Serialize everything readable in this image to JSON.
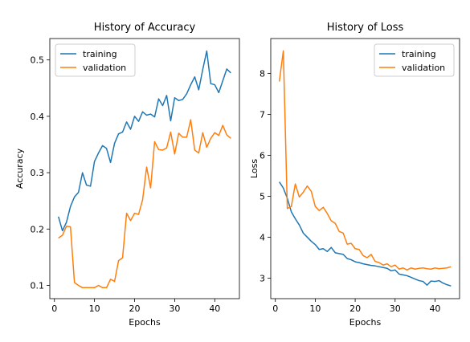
{
  "chart_data": [
    {
      "type": "line",
      "title": "History of Accuracy",
      "xlabel": "Epochs",
      "ylabel": "Accuracy",
      "xlim": [
        -1.15,
        46.15
      ],
      "ylim": [
        0.0765,
        0.538
      ],
      "xticks": [
        0,
        10,
        20,
        30,
        40
      ],
      "yticks": [
        0.1,
        0.2,
        0.3,
        0.4,
        0.5
      ],
      "ytick_labels": [
        "0.1",
        "0.2",
        "0.3",
        "0.4",
        "0.5"
      ],
      "legend": "upper left",
      "series": [
        {
          "name": "training",
          "color": "#1f77b4",
          "x": [
            1,
            2,
            3,
            4,
            5,
            6,
            7,
            8,
            9,
            10,
            11,
            12,
            13,
            14,
            15,
            16,
            17,
            18,
            19,
            20,
            21,
            22,
            23,
            24,
            25,
            26,
            27,
            28,
            29,
            30,
            31,
            32,
            33,
            34,
            35,
            36,
            37,
            38,
            39,
            40,
            41,
            42,
            43,
            44
          ],
          "values": [
            0.222,
            0.197,
            0.212,
            0.24,
            0.257,
            0.265,
            0.3,
            0.278,
            0.276,
            0.32,
            0.335,
            0.348,
            0.343,
            0.318,
            0.352,
            0.369,
            0.372,
            0.39,
            0.377,
            0.4,
            0.391,
            0.408,
            0.402,
            0.404,
            0.399,
            0.431,
            0.419,
            0.437,
            0.392,
            0.433,
            0.428,
            0.43,
            0.44,
            0.456,
            0.47,
            0.447,
            0.483,
            0.516,
            0.458,
            0.456,
            0.442,
            0.463,
            0.484,
            0.477
          ]
        },
        {
          "name": "validation",
          "color": "#ff7f0e",
          "x": [
            1,
            2,
            3,
            4,
            5,
            6,
            7,
            8,
            9,
            10,
            11,
            12,
            13,
            14,
            15,
            16,
            17,
            18,
            19,
            20,
            21,
            22,
            23,
            24,
            25,
            26,
            27,
            28,
            29,
            30,
            31,
            32,
            33,
            34,
            35,
            36,
            37,
            38,
            39,
            40,
            41,
            42,
            43,
            44
          ],
          "values": [
            0.184,
            0.189,
            0.205,
            0.204,
            0.105,
            0.1,
            0.096,
            0.096,
            0.096,
            0.096,
            0.1,
            0.096,
            0.096,
            0.111,
            0.107,
            0.144,
            0.149,
            0.228,
            0.215,
            0.228,
            0.226,
            0.252,
            0.31,
            0.273,
            0.355,
            0.341,
            0.34,
            0.344,
            0.372,
            0.333,
            0.37,
            0.363,
            0.363,
            0.394,
            0.34,
            0.335,
            0.371,
            0.345,
            0.361,
            0.371,
            0.366,
            0.384,
            0.367,
            0.361
          ]
        }
      ]
    },
    {
      "type": "line",
      "title": "History of Loss",
      "xlabel": "Epochs",
      "ylabel": "Loss",
      "xlim": [
        -1.15,
        46.15
      ],
      "ylim": [
        2.5,
        8.85
      ],
      "xticks": [
        0,
        10,
        20,
        30,
        40
      ],
      "yticks": [
        3,
        4,
        5,
        6,
        7,
        8
      ],
      "ytick_labels": [
        "3",
        "4",
        "5",
        "6",
        "7",
        "8"
      ],
      "legend": "upper right",
      "series": [
        {
          "name": "training",
          "color": "#1f77b4",
          "x": [
            1,
            2,
            3,
            4,
            5,
            6,
            7,
            8,
            9,
            10,
            11,
            12,
            13,
            14,
            15,
            16,
            17,
            18,
            19,
            20,
            21,
            22,
            23,
            24,
            25,
            26,
            27,
            28,
            29,
            30,
            31,
            32,
            33,
            34,
            35,
            36,
            37,
            38,
            39,
            40,
            41,
            42,
            43,
            44
          ],
          "values": [
            5.35,
            5.2,
            4.95,
            4.62,
            4.45,
            4.3,
            4.1,
            4.0,
            3.9,
            3.82,
            3.7,
            3.72,
            3.65,
            3.75,
            3.62,
            3.6,
            3.58,
            3.48,
            3.45,
            3.4,
            3.38,
            3.35,
            3.33,
            3.31,
            3.3,
            3.28,
            3.26,
            3.24,
            3.18,
            3.2,
            3.1,
            3.08,
            3.06,
            3.02,
            2.98,
            2.94,
            2.92,
            2.83,
            2.93,
            2.92,
            2.94,
            2.88,
            2.84,
            2.81
          ]
        },
        {
          "name": "validation",
          "color": "#ff7f0e",
          "x": [
            1,
            2,
            3,
            4,
            5,
            6,
            7,
            8,
            9,
            10,
            11,
            12,
            13,
            14,
            15,
            16,
            17,
            18,
            19,
            20,
            21,
            22,
            23,
            24,
            25,
            26,
            27,
            28,
            29,
            30,
            31,
            32,
            33,
            34,
            35,
            36,
            37,
            38,
            39,
            40,
            41,
            42,
            43,
            44
          ],
          "values": [
            7.8,
            8.55,
            4.7,
            4.75,
            5.3,
            4.98,
            5.1,
            5.25,
            5.12,
            4.75,
            4.65,
            4.73,
            4.58,
            4.4,
            4.34,
            4.14,
            4.1,
            3.83,
            3.85,
            3.72,
            3.7,
            3.55,
            3.5,
            3.58,
            3.41,
            3.38,
            3.32,
            3.35,
            3.28,
            3.32,
            3.22,
            3.25,
            3.2,
            3.25,
            3.22,
            3.24,
            3.25,
            3.23,
            3.22,
            3.25,
            3.23,
            3.24,
            3.25,
            3.28
          ]
        }
      ]
    }
  ]
}
